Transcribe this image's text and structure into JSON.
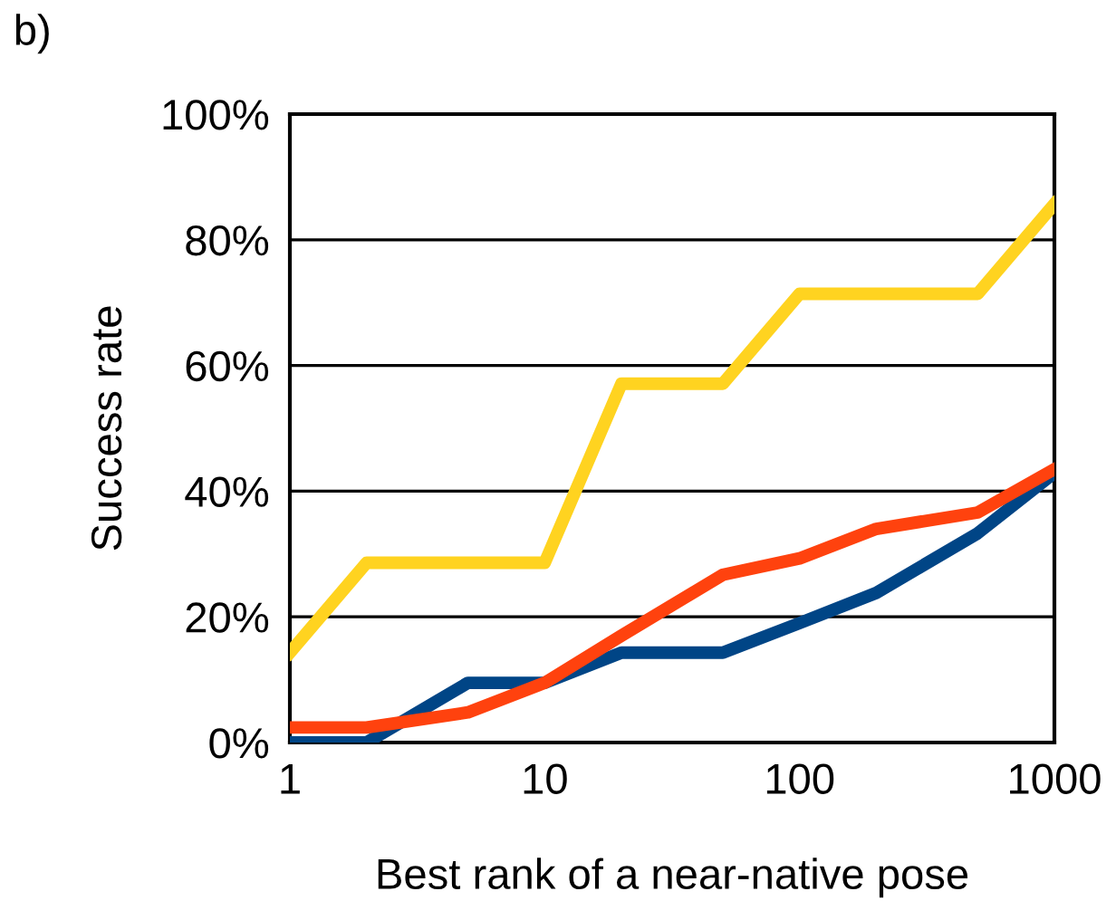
{
  "chart_data": {
    "type": "line",
    "xlabel": "Best rank of a near-native pose",
    "ylabel": "Success rate",
    "annotations": [
      "b)"
    ],
    "x": [
      1,
      2,
      5,
      10,
      20,
      50,
      100,
      200,
      500,
      1000
    ],
    "series": [
      {
        "color": "#ffd320",
        "values": [
          14.3,
          28.6,
          28.6,
          28.6,
          57.1,
          57.1,
          71.4,
          71.4,
          71.4,
          85.7
        ]
      },
      {
        "color": "#004586",
        "values": [
          0,
          0,
          9.5,
          9.5,
          14.3,
          14.3,
          19,
          23.8,
          33.3,
          42.9
        ]
      },
      {
        "color": "#ff420e",
        "values": [
          2.4,
          2.4,
          4.8,
          9.5,
          17,
          26.7,
          29.3,
          34,
          36.6,
          43.5
        ]
      }
    ],
    "log": "x",
    "xlim": [
      1,
      1000
    ],
    "xticks": [
      1,
      10,
      100,
      1000
    ],
    "ylim": [
      0,
      100
    ],
    "yticks": [
      {
        "value": 0,
        "label": "0%"
      },
      {
        "value": 20,
        "label": "20%"
      },
      {
        "value": 40,
        "label": "40%"
      },
      {
        "value": 60,
        "label": "60%"
      },
      {
        "value": 80,
        "label": "80%"
      },
      {
        "value": 100,
        "label": "100%"
      }
    ],
    "grid": "y",
    "marker": "none",
    "line_style": "solid",
    "legend": false
  }
}
